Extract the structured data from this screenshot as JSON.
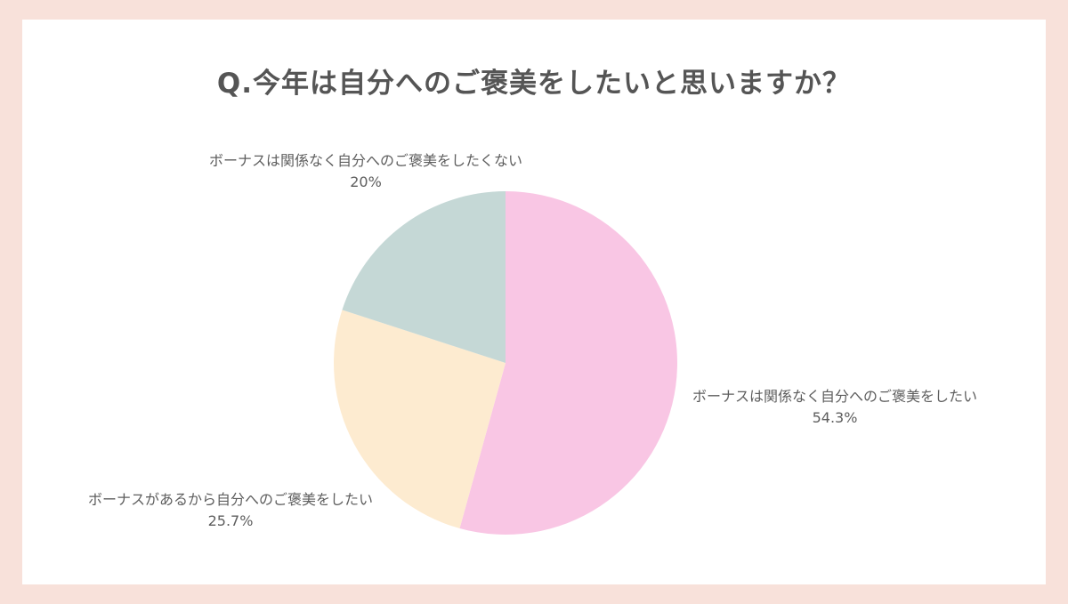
{
  "chart_data": {
    "type": "pie",
    "title": "Q.今年は自分へのご褒美をしたいと思いますか？",
    "start_angle": "top",
    "direction": "clockwise",
    "slices": [
      {
        "label": "ボーナスは関係なく自分へのご褒美をしたい",
        "value": 54.3,
        "value_label": "54.3%",
        "color": "#f9c6e4"
      },
      {
        "label": "ボーナスがあるから自分へのご褒美をしたい",
        "value": 25.7,
        "value_label": "25.7%",
        "color": "#fdebd0"
      },
      {
        "label": "ボーナスは関係なく自分へのご褒美をしたくない",
        "value": 20,
        "value_label": "20%",
        "color": "#c5d8d6"
      }
    ]
  }
}
